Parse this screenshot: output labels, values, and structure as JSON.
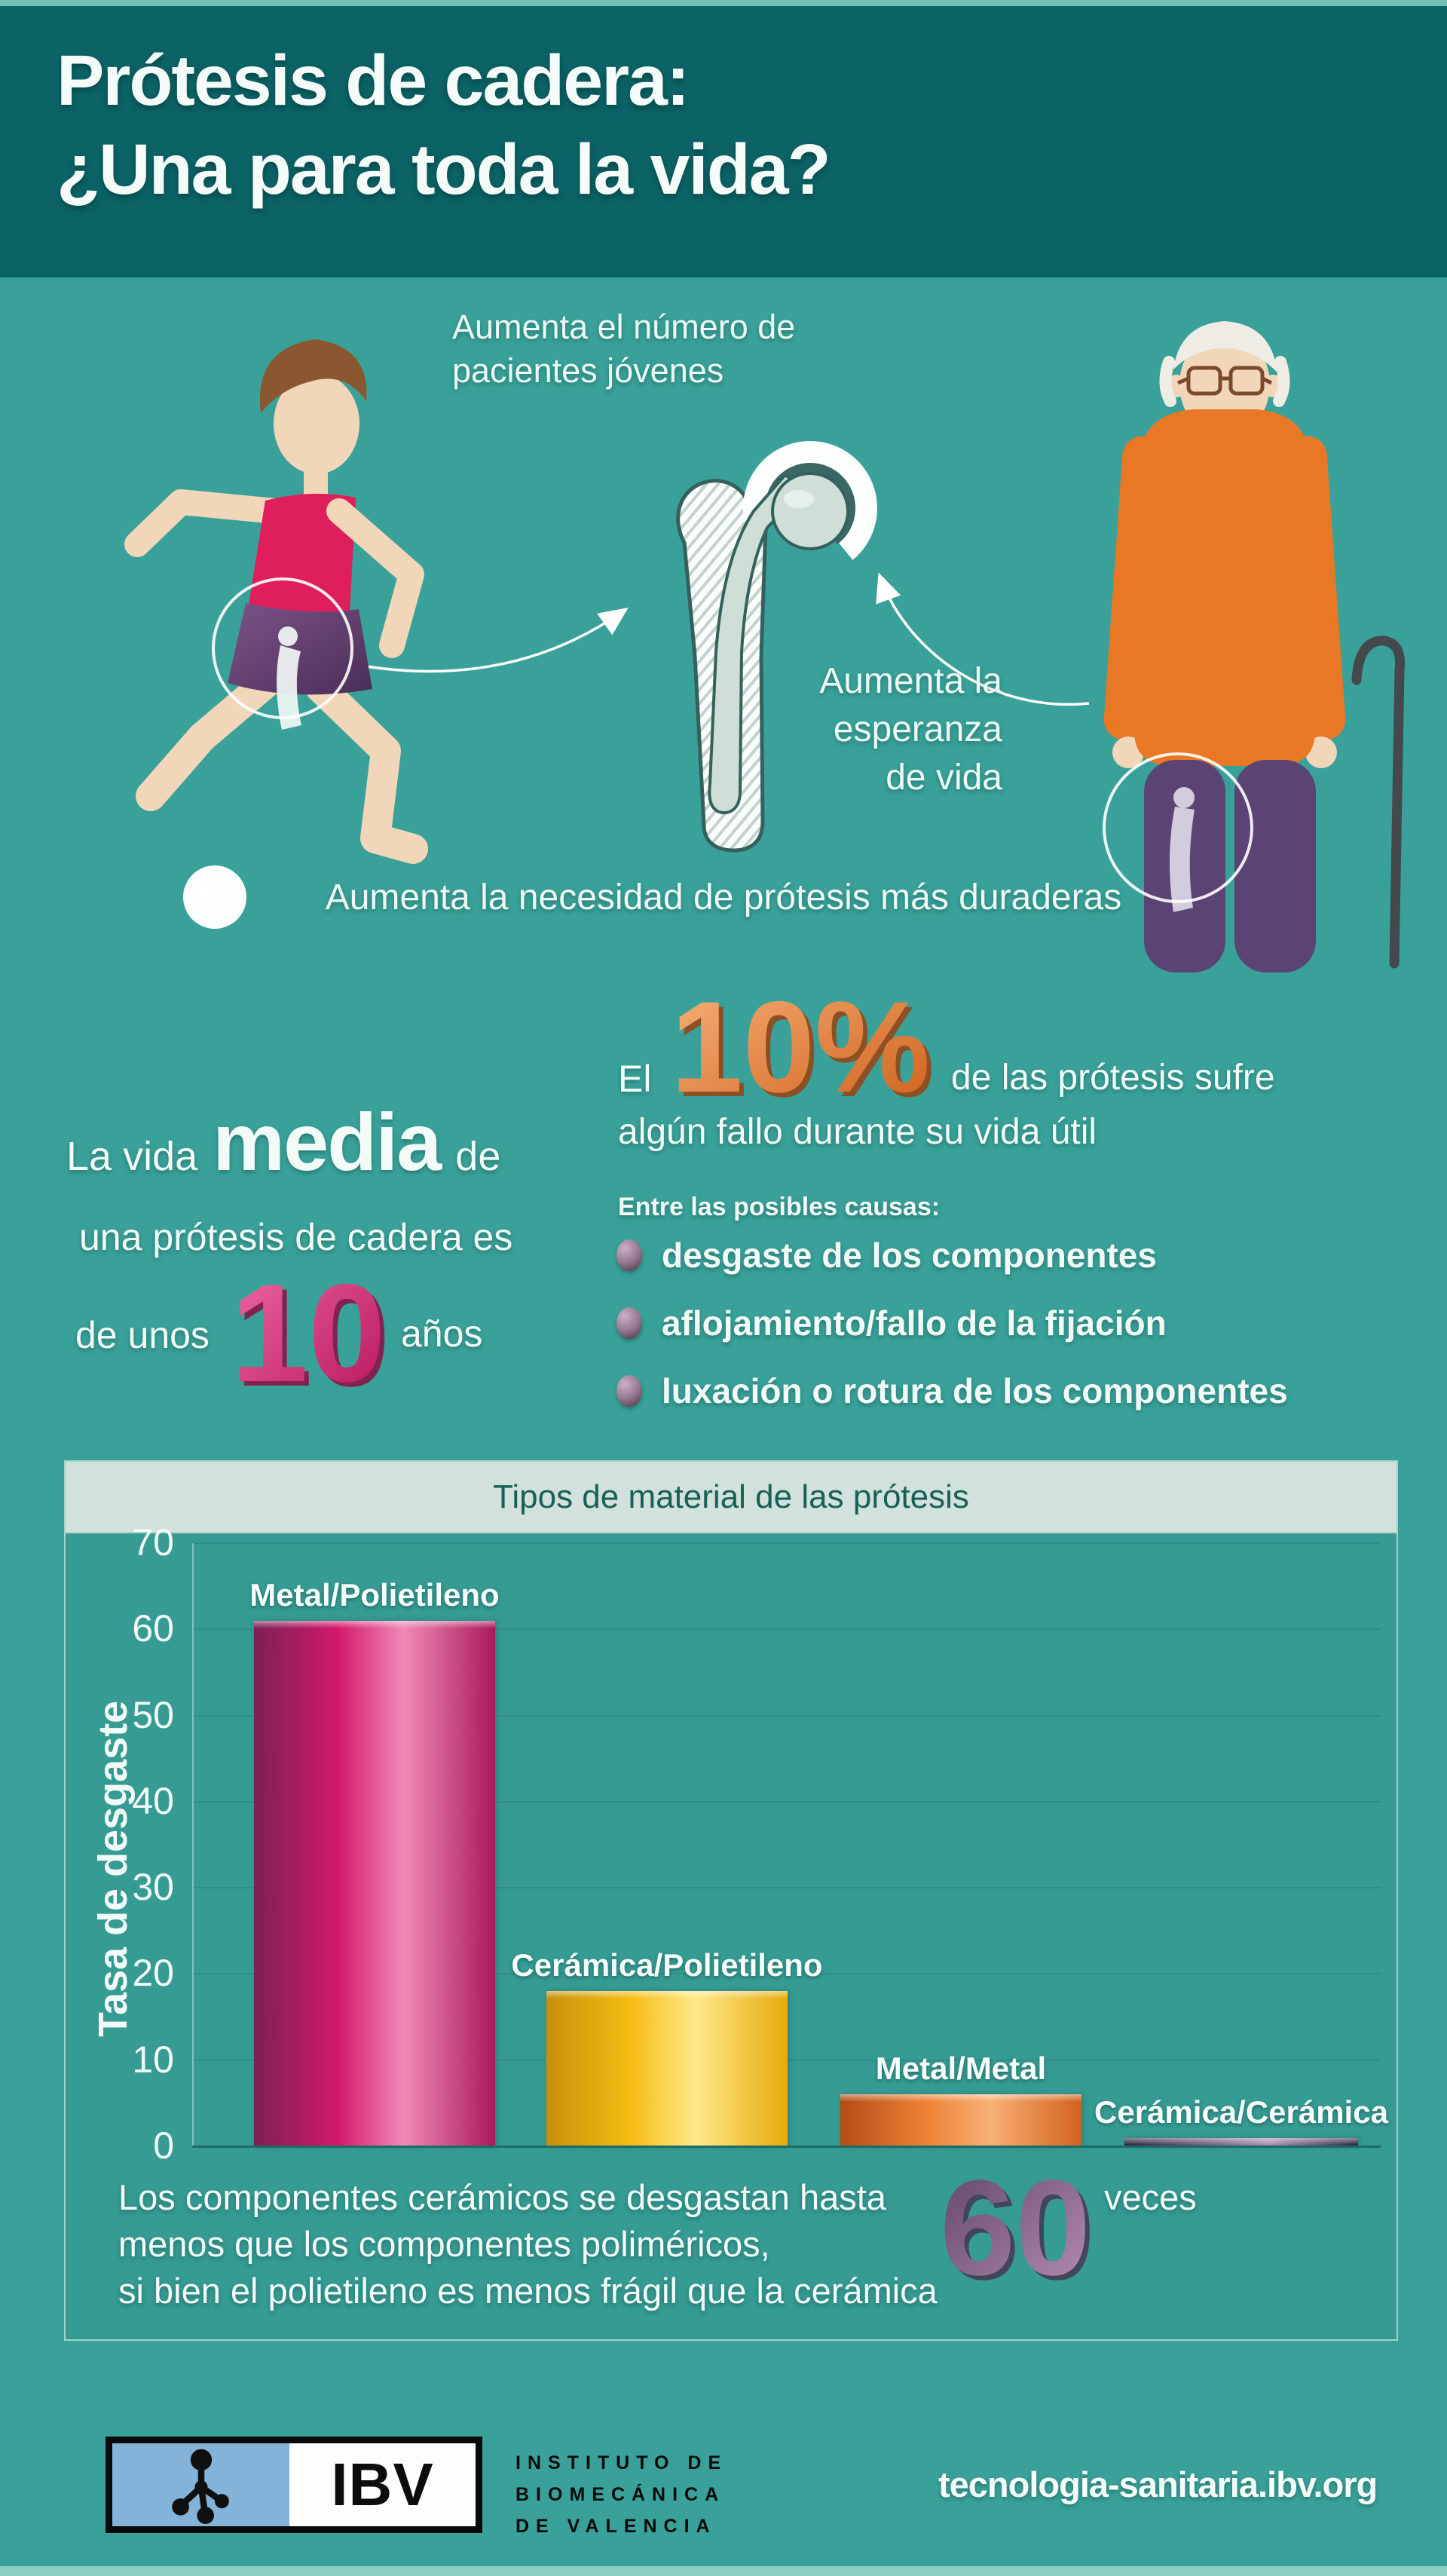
{
  "colors": {
    "header_bg": "#0b6366",
    "body_bg": "#39a199",
    "panel_strip_bg": "#d3e1dc",
    "panel_strip_text": "#176058",
    "accent_magenta": "#d4196b",
    "accent_yellow": "#f5bd13",
    "accent_orange": "#ed8134",
    "accent_purple": "#6b5579",
    "big10_pink_from": "#f06ba6",
    "big10_pink_to": "#b5125a",
    "big10pct_orange_from": "#f7b27c",
    "big10pct_orange_to": "#cf5f18",
    "big60_purple_from": "#5f4368",
    "big60_purple_to": "#b990b4"
  },
  "header": {
    "title_line1": "Prótesis de cadera:",
    "title_line2": "¿Una para toda la vida?"
  },
  "intro": {
    "young_label": [
      "Aumenta el número de",
      "pacientes jóvenes"
    ],
    "elderly_label": [
      "Aumenta la",
      "esperanza",
      "de vida"
    ],
    "need_banner": "Aumenta la necesidad de prótesis más duraderas"
  },
  "lifespan": {
    "lead": "La vida",
    "big_word": "media",
    "tail": "de",
    "line2": "una prótesis de cadera es",
    "line3_lead": "de unos",
    "big_number": "10",
    "line3_tail": "años"
  },
  "failure": {
    "lead": "El",
    "big_percent": "10%",
    "after_percent": "de las prótesis sufre",
    "line2": "algún fallo durante su vida útil",
    "causes_title": "Entre las posibles causas:",
    "causes": [
      "desgaste de los componentes",
      "aflojamiento/fallo de la fijación",
      "luxación o rotura de los componentes"
    ]
  },
  "chart_data": {
    "type": "bar",
    "title": "Tipos de material de las prótesis",
    "xlabel": "",
    "ylabel": "Tasa de desgaste",
    "categories": [
      "Metal/Polietileno",
      "Cerámica/Polietileno",
      "Metal/Metal",
      "Cerámica/Cerámica"
    ],
    "values": [
      61,
      18,
      6,
      1
    ],
    "ylim": [
      0,
      70
    ],
    "ytick_step": 10,
    "grid": true,
    "legend": "none",
    "bar_gradients": [
      [
        "#7c2154",
        "#d4196b",
        "#f08ab8",
        "#a91959"
      ],
      [
        "#c98f0a",
        "#f5bd13",
        "#ffe98a",
        "#e8a90c"
      ],
      [
        "#b34c17",
        "#ed8134",
        "#f9b175",
        "#d2621e"
      ],
      [
        "#241b33",
        "#6b5579",
        "#a78bab",
        "#241b33"
      ]
    ]
  },
  "note": {
    "line1": "Los componentes cerámicos se desgastan hasta",
    "big_number": "60",
    "line1_tail": "veces",
    "line2": "menos que los componentes poliméricos,",
    "line3": "si bien el polietileno es menos frágil que la cerámica"
  },
  "footer": {
    "logo_acronym": "IBV",
    "institute": [
      "INSTITUTO DE",
      "BIOMECÁNICA",
      "DE VALENCIA"
    ],
    "url": "tecnologia-sanitaria.ibv.org"
  }
}
